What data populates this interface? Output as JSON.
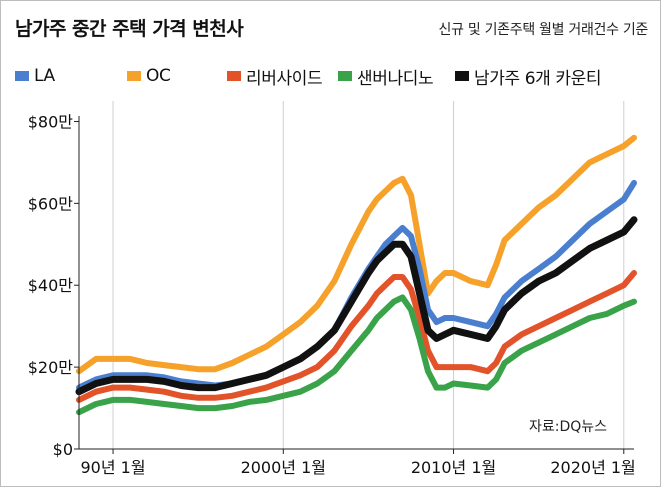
{
  "header": {
    "title": "남가주 중간 주택 가격 변천사",
    "subtitle": "신규 및 기존주택 월별 거래건수 기준"
  },
  "source_note": "자료:DQ뉴스",
  "colors": {
    "LA": "#4a7fd0",
    "OC": "#f5a12a",
    "riverside": "#e2532a",
    "sanbernardino": "#3aa34a",
    "six_county": "#111111",
    "grid": "#cfcfcf"
  },
  "chart_data": {
    "type": "line",
    "title": "남가주 중간 주택 가격 변천사",
    "subtitle": "신규 및 기존주택 월별 거래건수 기준",
    "xlabel": "",
    "ylabel": "",
    "x_ticks": [
      {
        "value": 1990.0,
        "label": "90년 1월"
      },
      {
        "value": 2000.0,
        "label": "2000년 1월"
      },
      {
        "value": 2010.0,
        "label": "2010년 1월"
      },
      {
        "value": 2020.0,
        "label": "2020년 1월"
      }
    ],
    "y_ticks": [
      {
        "value": 0,
        "label": "$0"
      },
      {
        "value": 20,
        "label": "$20만"
      },
      {
        "value": 40,
        "label": "$40만"
      },
      {
        "value": 60,
        "label": "$60만"
      },
      {
        "value": 80,
        "label": "$80만"
      }
    ],
    "xlim": [
      1988.0,
      2020.6
    ],
    "ylim": [
      0,
      85
    ],
    "grid": "vertical",
    "legend_position": "top",
    "x": [
      1988.0,
      1989.0,
      1990.0,
      1991.0,
      1992.0,
      1993.0,
      1994.0,
      1995.0,
      1996.0,
      1997.0,
      1998.0,
      1999.0,
      2000.0,
      2001.0,
      2002.0,
      2003.0,
      2004.0,
      2005.0,
      2005.5,
      2006.0,
      2006.5,
      2007.0,
      2007.5,
      2008.0,
      2008.5,
      2009.0,
      2009.5,
      2010.0,
      2011.0,
      2012.0,
      2012.5,
      2013.0,
      2014.0,
      2015.0,
      2016.0,
      2017.0,
      2018.0,
      2019.0,
      2020.0,
      2020.6
    ],
    "series": [
      {
        "name": "LA",
        "color_key": "LA",
        "values": [
          15,
          17,
          18,
          18,
          18,
          17.5,
          16.5,
          16,
          15.5,
          16,
          17,
          18,
          20,
          22,
          25,
          29,
          37,
          44,
          47,
          50,
          52,
          54,
          52,
          44,
          34,
          31,
          32,
          32,
          31,
          30,
          33,
          37,
          41,
          44,
          47,
          51,
          55,
          58,
          61,
          65
        ]
      },
      {
        "name": "OC",
        "color_key": "OC",
        "values": [
          19,
          22,
          22,
          22,
          21,
          20.5,
          20,
          19.5,
          19.5,
          21,
          23,
          25,
          28,
          31,
          35,
          41,
          50,
          58,
          61,
          63,
          65,
          66,
          62,
          50,
          38,
          41,
          43,
          43,
          41,
          40,
          45,
          51,
          55,
          59,
          62,
          66,
          70,
          72,
          74,
          76
        ]
      },
      {
        "name": "리버사이드",
        "color_key": "riverside",
        "values": [
          12,
          14,
          15,
          15,
          14.5,
          14,
          13,
          12.5,
          12.5,
          13,
          14,
          15,
          16.5,
          18,
          20,
          24,
          30,
          35,
          38,
          40,
          42,
          42,
          39,
          32,
          24,
          20,
          20,
          20,
          20,
          19,
          21,
          25,
          28,
          30,
          32,
          34,
          36,
          38,
          40,
          43
        ]
      },
      {
        "name": "샌버나디노",
        "color_key": "sanbernardino",
        "values": [
          9,
          11,
          12,
          12,
          11.5,
          11,
          10.5,
          10,
          10,
          10.5,
          11.5,
          12,
          13,
          14,
          16,
          19,
          24,
          29,
          32,
          34,
          36,
          37,
          34,
          27,
          19,
          15,
          15,
          16,
          15.5,
          15,
          17,
          21,
          24,
          26,
          28,
          30,
          32,
          33,
          35,
          36
        ]
      },
      {
        "name": "남가주 6개 카운티",
        "color_key": "six_county",
        "values": [
          14,
          16,
          17,
          17,
          17,
          16.5,
          15.5,
          15,
          15,
          16,
          17,
          18,
          20,
          22,
          25,
          29,
          36,
          43,
          46,
          48,
          50,
          50,
          47,
          38,
          29,
          27,
          28,
          29,
          28,
          27,
          30,
          34,
          38,
          41,
          43,
          46,
          49,
          51,
          53,
          56
        ]
      }
    ]
  }
}
